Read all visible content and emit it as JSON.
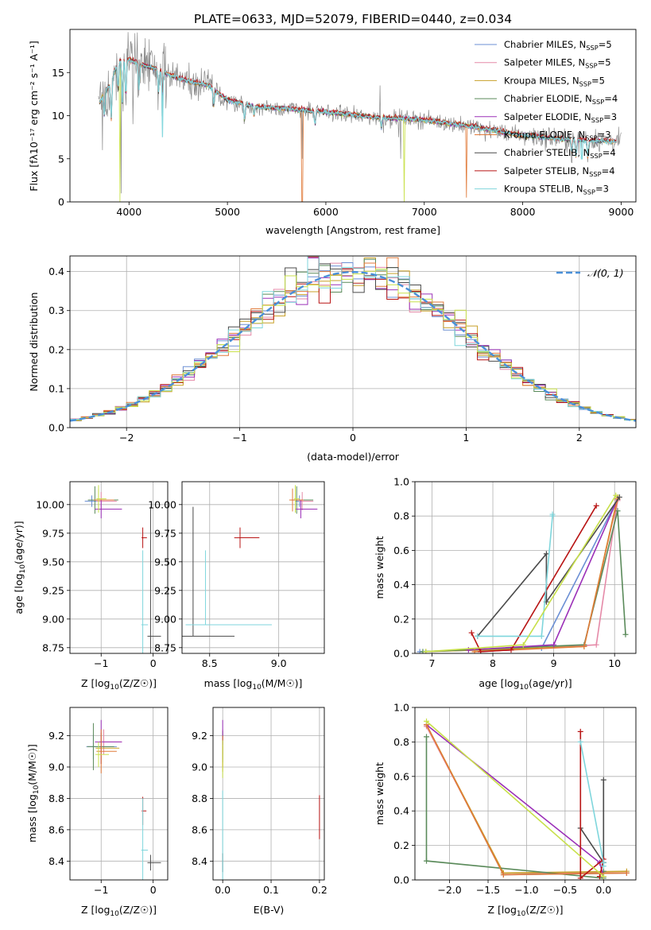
{
  "figure_title": "PLATE=0633, MJD=52079, FIBERID=0440, z=0.034",
  "series_styles": [
    {
      "name": "Chabrier MILES, N_SSP=5",
      "color": "#6b8fd4"
    },
    {
      "name": "Salpeter MILES, N_SSP=5",
      "color": "#e58aa8"
    },
    {
      "name": "Kroupa MILES, N_SSP=5",
      "color": "#c8a028"
    },
    {
      "name": "Chabrier ELODIE, N_SSP=4",
      "color": "#5a8a5a"
    },
    {
      "name": "Salpeter ELODIE, N_SSP=3",
      "color": "#9b30b8"
    },
    {
      "name": "Kroupa ELODIE, N_SSP=3",
      "color": "#e07a3a"
    },
    {
      "name": "Chabrier STELIB, N_SSP=4",
      "color": "#4a4a4a"
    },
    {
      "name": "Salpeter STELIB, N_SSP=4",
      "color": "#b81414"
    },
    {
      "name": "Kroupa STELIB, N_SSP=3",
      "color": "#7fd6dc"
    }
  ],
  "extra_colors": {
    "data_grey": "#8a8a8a",
    "yellow_green": "#c8e04a",
    "normal_curve": "#4a90d9"
  },
  "chart_data": [
    {
      "id": "spectrum",
      "type": "line",
      "xlabel": "wavelength [Angstrom, rest frame]",
      "ylabel": "Flux [f_λ 10^-17 erg cm^-2 s^-1 A^-1]",
      "xlim": [
        3400,
        9150
      ],
      "ylim": [
        0,
        20
      ],
      "xticks": [
        4000,
        5000,
        6000,
        7000,
        8000,
        9000
      ],
      "yticks": [
        0,
        5,
        10,
        15
      ],
      "grid": false,
      "legend": "top-right",
      "legend_entries": [
        {
          "prefix": "Chabrier MILES, N",
          "sub": "SSP",
          "suffix": "=5"
        },
        {
          "prefix": "Salpeter MILES, N",
          "sub": "SSP",
          "suffix": "=5"
        },
        {
          "prefix": "Kroupa MILES, N",
          "sub": "SSP",
          "suffix": "=5"
        },
        {
          "prefix": "Chabrier ELODIE, N",
          "sub": "SSP",
          "suffix": "=4"
        },
        {
          "prefix": "Salpeter ELODIE, N",
          "sub": "SSP",
          "suffix": "=3"
        },
        {
          "prefix": "Kroupa ELODIE, N",
          "sub": "SSP",
          "suffix": "=3"
        },
        {
          "prefix": "Chabrier STELIB, N",
          "sub": "SSP",
          "suffix": "=4"
        },
        {
          "prefix": "Salpeter STELIB, N",
          "sub": "SSP",
          "suffix": "=4"
        },
        {
          "prefix": "Kroupa STELIB, N",
          "sub": "SSP",
          "suffix": "=3"
        }
      ],
      "continuum": [
        [
          3700,
          11.5
        ],
        [
          3800,
          13.5
        ],
        [
          3900,
          16.5
        ],
        [
          4000,
          16.5
        ],
        [
          4100,
          16.0
        ],
        [
          4300,
          15.3
        ],
        [
          4500,
          14.3
        ],
        [
          4800,
          13.5
        ],
        [
          5000,
          11.8
        ],
        [
          5300,
          11.0
        ],
        [
          5600,
          10.8
        ],
        [
          6000,
          10.4
        ],
        [
          6500,
          9.8
        ],
        [
          7000,
          9.5
        ],
        [
          7500,
          8.7
        ],
        [
          8000,
          7.7
        ],
        [
          8500,
          7.2
        ],
        [
          9000,
          7.0
        ]
      ],
      "absorption_lines": [
        [
          3750,
          2.5
        ],
        [
          3820,
          4.5
        ],
        [
          3889,
          3.5
        ],
        [
          3933,
          5.0
        ],
        [
          3968,
          4.5
        ],
        [
          4101,
          3.0
        ],
        [
          4300,
          2.5
        ],
        [
          4340,
          2.5
        ],
        [
          4861,
          1.8
        ],
        [
          5175,
          2.0
        ],
        [
          5270,
          1.0
        ],
        [
          5890,
          1.5
        ],
        [
          6563,
          1.2
        ],
        [
          8498,
          1.5
        ],
        [
          8542,
          2.0
        ],
        [
          8662,
          2.0
        ]
      ],
      "data_spikes": [
        [
          3730,
          6.0
        ],
        [
          3920,
          1.0
        ],
        [
          4040,
          9.0
        ],
        [
          5760,
          5.0
        ],
        [
          6548,
          13.5
        ],
        [
          6583,
          8.0
        ],
        [
          6740,
          7.5
        ],
        [
          6762,
          5.0
        ],
        [
          7450,
          8.5
        ],
        [
          7620,
          7.0
        ]
      ],
      "model_dips": [
        [
          3905,
          0.0,
          "#c8e04a"
        ],
        [
          4340,
          7.5,
          "#7fd6dc"
        ],
        [
          5760,
          0.0,
          "#e07a3a"
        ],
        [
          6795,
          0.0,
          "#c8e04a"
        ],
        [
          7425,
          0.5,
          "#e07a3a"
        ],
        [
          8600,
          5.0,
          "#7fd6dc"
        ]
      ]
    },
    {
      "id": "residuals",
      "type": "histogram",
      "xlabel": "(data-model)/error",
      "ylabel": "Normed distribution",
      "xlim": [
        -2.5,
        2.5
      ],
      "ylim": [
        0,
        0.44
      ],
      "xticks": [
        -2,
        -1,
        0,
        1,
        2
      ],
      "yticks": [
        0.0,
        0.1,
        0.2,
        0.3,
        0.4
      ],
      "grid": true,
      "legend": "top-right",
      "legend_label": "𝒩(0, 1)",
      "bin_width": 0.1,
      "description_of_series": "nine step histograms, one per SSP model, scattered around a standard normal curve"
    },
    {
      "id": "age_vs_Z",
      "type": "scatter",
      "xlabel_prefix": "Z [log",
      "xlabel_sub": "10",
      "xlabel_suffix": "(Z/Z☉)]",
      "ylabel_prefix": "age  [log",
      "ylabel_sub": "10",
      "ylabel_suffix": "(age/yr)]",
      "xlim": [
        -1.6,
        0.28
      ],
      "ylim": [
        8.7,
        10.2
      ],
      "xticks": [
        -1,
        0
      ],
      "yticks": [
        8.75,
        9.0,
        9.25,
        9.5,
        9.75,
        10.0
      ],
      "grid": true,
      "points": [
        {
          "series": 0,
          "x": -1.18,
          "y": 10.03,
          "xerr": 0.45,
          "yerr": 0.05
        },
        {
          "series": 1,
          "x": -1.0,
          "y": 10.03,
          "xerr": 0.3,
          "yerr": 0.08
        },
        {
          "series": 2,
          "x": -1.05,
          "y": 10.04,
          "xerr": 0.35,
          "yerr": 0.1
        },
        {
          "series": 3,
          "x": -1.12,
          "y": 10.04,
          "xerr": 0.45,
          "yerr": 0.12
        },
        {
          "series": 4,
          "x": -1.0,
          "y": 9.96,
          "xerr": 0.4,
          "yerr": 0.08
        },
        {
          "series": 5,
          "x": -1.05,
          "y": 10.04,
          "xerr": 0.3,
          "yerr": 0.1
        },
        {
          "series": 6,
          "x": -0.05,
          "y": 8.85,
          "xerr": 0.2,
          "yerr": 1.13
        },
        {
          "series": 7,
          "x": -0.2,
          "y": 9.71,
          "xerr": 0.08,
          "yerr": 0.09
        },
        {
          "series": 8,
          "x": -0.2,
          "y": 8.95,
          "xerr": 0.1,
          "yerr": 0.65
        },
        {
          "series": 9,
          "x": -1.05,
          "y": 10.05,
          "xerr": 0.15,
          "yerr": 0.12
        }
      ]
    },
    {
      "id": "age_vs_mass",
      "type": "scatter",
      "xlabel_prefix": "mass [log",
      "xlabel_sub": "10",
      "xlabel_suffix": "(M/M☉)]",
      "xlim": [
        8.3,
        9.33
      ],
      "ylim": [
        8.7,
        10.2
      ],
      "xticks": [
        8.5,
        9.0
      ],
      "yticks": [
        8.75,
        9.0,
        9.25,
        9.5,
        9.75,
        10.0
      ],
      "grid": true,
      "points": [
        {
          "series": 0,
          "x": 9.15,
          "y": 10.03,
          "xerr": 0.1,
          "yerr": 0.05
        },
        {
          "series": 1,
          "x": 9.17,
          "y": 10.03,
          "xerr": 0.08,
          "yerr": 0.08
        },
        {
          "series": 2,
          "x": 9.12,
          "y": 10.04,
          "xerr": 0.1,
          "yerr": 0.1
        },
        {
          "series": 3,
          "x": 9.13,
          "y": 10.04,
          "xerr": 0.12,
          "yerr": 0.12
        },
        {
          "series": 4,
          "x": 9.16,
          "y": 9.96,
          "xerr": 0.12,
          "yerr": 0.08
        },
        {
          "series": 5,
          "x": 9.1,
          "y": 10.04,
          "xerr": 0.08,
          "yerr": 0.1
        },
        {
          "series": 6,
          "x": 8.38,
          "y": 8.85,
          "xerr": 0.3,
          "yerr": 0.0
        },
        {
          "series": 6,
          "x": 8.38,
          "y": 8.85,
          "xerr": 0.0,
          "yerr": 1.13,
          "anchor_top": true
        },
        {
          "series": 7,
          "x": 8.72,
          "y": 9.71,
          "xerr": 0.14,
          "yerr": 0.09
        },
        {
          "series": 8,
          "x": 8.47,
          "y": 8.95,
          "xerr": 0.48,
          "yerr": 0.0
        },
        {
          "series": 8,
          "x": 8.47,
          "y": 8.95,
          "xerr": 0.0,
          "yerr": 0.65,
          "anchor_top": true
        },
        {
          "series": 9,
          "x": 9.12,
          "y": 10.05,
          "xerr": 0.03,
          "yerr": 0.12
        }
      ]
    },
    {
      "id": "mass_weight_vs_age",
      "type": "line",
      "xlabel_prefix": "age  [log",
      "xlabel_sub": "10",
      "xlabel_suffix": "(age/yr)]",
      "ylabel": "mass weight",
      "xlim": [
        6.72,
        10.35
      ],
      "ylim": [
        0,
        1.0
      ],
      "xticks": [
        7,
        8,
        9,
        10
      ],
      "yticks": [
        0.0,
        0.2,
        0.4,
        0.6,
        0.8,
        1.0
      ],
      "grid": true,
      "series": [
        {
          "color": 0,
          "x": [
            6.8,
            8.8,
            10.05
          ],
          "y": [
            0.01,
            0.03,
            0.9
          ]
        },
        {
          "color": 1,
          "x": [
            7.8,
            9.7,
            10.05
          ],
          "y": [
            0.01,
            0.05,
            0.89
          ]
        },
        {
          "color": 2,
          "x": [
            6.9,
            9.5,
            10.05
          ],
          "y": [
            0.01,
            0.04,
            0.91
          ]
        },
        {
          "color": 3,
          "x": [
            6.85,
            9.5,
            10.05,
            10.18
          ],
          "y": [
            0.01,
            0.05,
            0.83,
            0.11
          ]
        },
        {
          "color": 4,
          "x": [
            7.6,
            9.0,
            10.05
          ],
          "y": [
            0.02,
            0.05,
            0.9
          ]
        },
        {
          "color": 5,
          "x": [
            7.7,
            9.5,
            10.05
          ],
          "y": [
            0.01,
            0.04,
            0.9
          ]
        },
        {
          "color": 6,
          "x": [
            7.75,
            8.88,
            8.88,
            10.08
          ],
          "y": [
            0.1,
            0.58,
            0.3,
            0.91
          ]
        },
        {
          "color": 7,
          "x": [
            7.65,
            7.8,
            8.3,
            9.7
          ],
          "y": [
            0.12,
            0.01,
            0.02,
            0.86
          ]
        },
        {
          "color": 8,
          "x": [
            7.75,
            8.8,
            8.98,
            8.98
          ],
          "y": [
            0.1,
            0.1,
            0.8,
            0.81
          ]
        },
        {
          "color": 9,
          "x": [
            6.9,
            8.5,
            10.02
          ],
          "y": [
            0.01,
            0.05,
            0.92
          ]
        }
      ]
    },
    {
      "id": "mass_vs_Z",
      "type": "scatter",
      "xlabel_prefix": "Z [log",
      "xlabel_sub": "10",
      "xlabel_suffix": "(Z/Z☉)]",
      "ylabel_prefix": "mass [log",
      "ylabel_sub": "10",
      "ylabel_suffix": "(M/M☉)]",
      "xlim": [
        -1.6,
        0.28
      ],
      "ylim": [
        8.28,
        9.38
      ],
      "xticks": [
        -1,
        0
      ],
      "yticks": [
        8.4,
        8.6,
        8.8,
        9.0,
        9.2
      ],
      "grid": true,
      "points": [
        {
          "series": 0,
          "x": -1.15,
          "y": 9.13,
          "xerr": 0.45,
          "yerr": 0.08
        },
        {
          "series": 1,
          "x": -0.95,
          "y": 9.16,
          "xerr": 0.35,
          "yerr": 0.08
        },
        {
          "series": 2,
          "x": -1.0,
          "y": 9.12,
          "xerr": 0.35,
          "yerr": 0.1
        },
        {
          "series": 3,
          "x": -1.15,
          "y": 9.13,
          "xerr": 0.4,
          "yerr": 0.15
        },
        {
          "series": 4,
          "x": -1.0,
          "y": 9.16,
          "xerr": 0.4,
          "yerr": 0.14
        },
        {
          "series": 5,
          "x": -1.0,
          "y": 9.1,
          "xerr": 0.3,
          "yerr": 0.14
        },
        {
          "series": 6,
          "x": -0.05,
          "y": 8.39,
          "xerr": 0.2,
          "yerr": 0.05
        },
        {
          "series": 7,
          "x": -0.2,
          "y": 8.72,
          "xerr": 0.07,
          "yerr": 0.09
        },
        {
          "series": 8,
          "x": -0.2,
          "y": 8.47,
          "xerr": 0.1,
          "yerr": 0.33
        },
        {
          "series": 9,
          "x": -1.05,
          "y": 9.08,
          "xerr": 0.2,
          "yerr": 0.08
        }
      ]
    },
    {
      "id": "mass_vs_EBV",
      "type": "scatter",
      "xlabel": "E(B-V)",
      "xlim": [
        -0.02,
        0.21
      ],
      "ylim": [
        8.28,
        9.38
      ],
      "xticks": [
        0.0,
        0.1,
        0.2
      ],
      "yticks": [
        8.4,
        8.6,
        8.8,
        9.0,
        9.2
      ],
      "grid": true,
      "points": [
        {
          "series": 0,
          "x": 0.0,
          "y": 9.13,
          "xerr": 0,
          "yerr": 0.08
        },
        {
          "series": 1,
          "x": 0.0,
          "y": 9.16,
          "xerr": 0,
          "yerr": 0.08
        },
        {
          "series": 2,
          "x": 0.0,
          "y": 9.05,
          "xerr": 0,
          "yerr": 0.08
        },
        {
          "series": 3,
          "x": 0.0,
          "y": 9.13,
          "xerr": 0,
          "yerr": 0.1
        },
        {
          "series": 4,
          "x": 0.0,
          "y": 9.22,
          "xerr": 0,
          "yerr": 0.08
        },
        {
          "series": 5,
          "x": 0.0,
          "y": 9.1,
          "xerr": 0,
          "yerr": 0.1
        },
        {
          "series": 6,
          "x": 0.0,
          "y": 8.39,
          "xerr": 0,
          "yerr": 0.06
        },
        {
          "series": 7,
          "x": 0.2,
          "y": 8.68,
          "xerr": 0,
          "yerr": 0.14
        },
        {
          "series": 8,
          "x": 0.0,
          "y": 8.55,
          "xerr": 0,
          "yerr": 0.3
        },
        {
          "series": 9,
          "x": 0.0,
          "y": 9.05,
          "xerr": 0,
          "yerr": 0.12
        }
      ]
    },
    {
      "id": "mass_weight_vs_Z",
      "type": "line",
      "xlabel_prefix": "Z [log",
      "xlabel_sub": "10",
      "xlabel_suffix": "(Z/Z☉)]",
      "ylabel": "mass weight",
      "xlim": [
        -2.45,
        0.42
      ],
      "ylim": [
        0,
        1.0
      ],
      "xticks": [
        -2.0,
        -1.5,
        -1.0,
        -0.5,
        0.0
      ],
      "yticks": [
        0.0,
        0.2,
        0.4,
        0.6,
        0.8,
        1.0
      ],
      "grid": true,
      "series": [
        {
          "color": 0,
          "x": [
            -2.3,
            -1.3,
            0.3
          ],
          "y": [
            0.9,
            0.03,
            0.04
          ]
        },
        {
          "color": 1,
          "x": [
            -2.3,
            -1.3,
            0.3
          ],
          "y": [
            0.89,
            0.04,
            0.04
          ]
        },
        {
          "color": 2,
          "x": [
            -2.3,
            -1.3,
            0.3
          ],
          "y": [
            0.9,
            0.04,
            0.05
          ]
        },
        {
          "color": 3,
          "x": [
            -2.3,
            -2.3,
            -0.0,
            0.0
          ],
          "y": [
            0.83,
            0.11,
            0.01,
            0.05
          ]
        },
        {
          "color": 4,
          "x": [
            -2.3,
            -0.05,
            0.0
          ],
          "y": [
            0.9,
            0.1,
            0.02
          ]
        },
        {
          "color": 5,
          "x": [
            -2.3,
            -1.3,
            0.3
          ],
          "y": [
            0.9,
            0.03,
            0.04
          ]
        },
        {
          "color": 6,
          "x": [
            -0.3,
            0.0,
            0.0,
            0.0
          ],
          "y": [
            0.3,
            0.1,
            0.58,
            0.1
          ]
        },
        {
          "color": 7,
          "x": [
            -0.3,
            -0.3,
            0.0,
            -0.05
          ],
          "y": [
            0.86,
            0.01,
            0.12,
            0.02
          ]
        },
        {
          "color": 8,
          "x": [
            -0.3,
            0.0,
            0.0
          ],
          "y": [
            0.8,
            0.1,
            0.08
          ]
        },
        {
          "color": 9,
          "x": [
            -2.3,
            0.0
          ],
          "y": [
            0.92,
            0.02
          ]
        }
      ]
    }
  ]
}
